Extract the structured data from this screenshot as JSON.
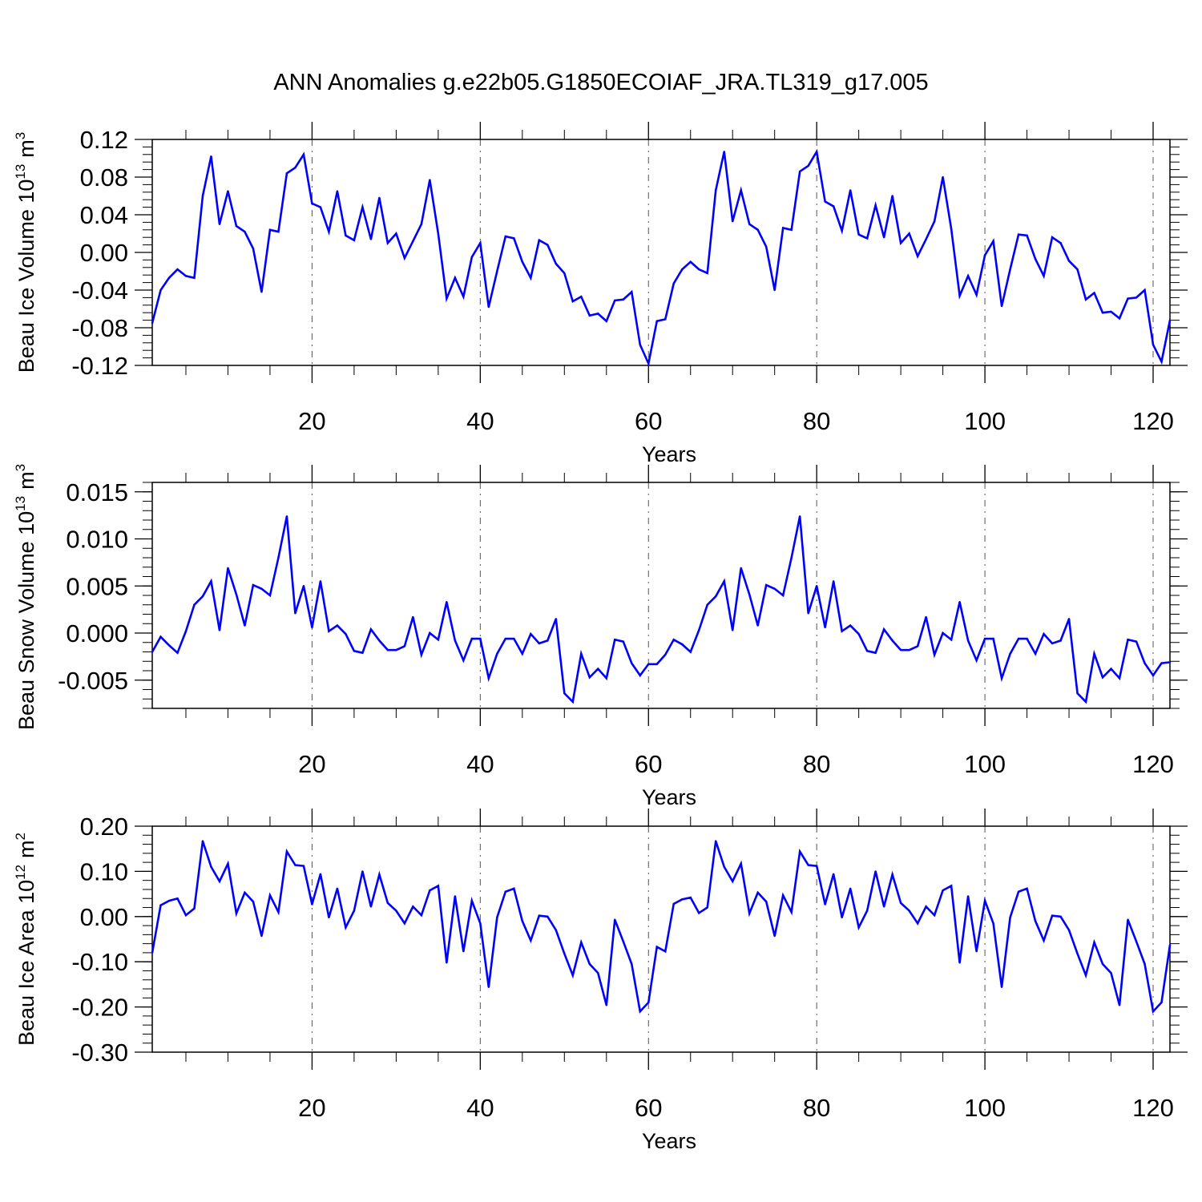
{
  "figure_title": "ANN Anomalies g.e22b05.G1850ECOIAF_JRA.TL319_g17.005",
  "series_color": "#0000ff",
  "chart_data": [
    {
      "type": "line",
      "title": "",
      "xlabel": "Years",
      "ylabel": "Beau Ice Volume 10",
      "ylabel_exponent": "13",
      "ylabel_unit": "m",
      "ylabel_unit_exponent": "3",
      "xlim": [
        1,
        122
      ],
      "ylim": [
        -0.12,
        0.12
      ],
      "xticks": [
        20,
        40,
        60,
        80,
        100,
        120
      ],
      "xtick_labels": [
        "20",
        "40",
        "60",
        "80",
        "100",
        "120"
      ],
      "yticks": [
        -0.12,
        -0.08,
        -0.04,
        0.0,
        0.04,
        0.08,
        0.12
      ],
      "ytick_labels": [
        "-0.12",
        "-0.08",
        "-0.04",
        "0.00",
        "0.04",
        "0.08",
        "0.12"
      ],
      "yminor_step": 0.008,
      "vgrid": [
        20,
        40,
        60,
        80,
        100,
        120
      ],
      "series": [
        {
          "name": "Beau Ice Volume",
          "values": [
            -0.075,
            -0.04,
            -0.027,
            -0.018,
            -0.025,
            -0.027,
            0.06,
            0.102,
            0.03,
            0.065,
            0.028,
            0.022,
            0.004,
            -0.042,
            0.024,
            0.022,
            0.084,
            0.09,
            0.104,
            0.052,
            0.048,
            0.022,
            0.065,
            0.018,
            0.013,
            0.048,
            0.014,
            0.058,
            0.01,
            0.02,
            -0.006,
            0.012,
            0.03,
            0.077,
            0.02,
            -0.049,
            -0.027,
            -0.047,
            -0.005,
            0.01,
            -0.058,
            -0.02,
            0.017,
            0.015,
            -0.01,
            -0.027,
            0.013,
            0.008,
            -0.012,
            -0.022,
            -0.052,
            -0.047,
            -0.067,
            -0.065,
            -0.073,
            -0.051,
            -0.05,
            -0.042,
            -0.098,
            -0.118,
            -0.073,
            -0.071,
            -0.033,
            -0.018,
            -0.01,
            -0.018,
            -0.022,
            0.066,
            0.107,
            0.033,
            0.066,
            0.03,
            0.024,
            0.006,
            -0.04,
            0.026,
            0.024,
            0.086,
            0.092,
            0.107,
            0.054,
            0.049,
            0.023,
            0.066,
            0.019,
            0.015,
            0.05,
            0.016,
            0.06,
            0.01,
            0.02,
            -0.004,
            0.014,
            0.033,
            0.08,
            0.025,
            -0.046,
            -0.025,
            -0.045,
            -0.003,
            0.012,
            -0.057,
            -0.018,
            0.019,
            0.018,
            -0.007,
            -0.025,
            0.016,
            0.01,
            -0.009,
            -0.018,
            -0.05,
            -0.043,
            -0.064,
            -0.063,
            -0.07,
            -0.049,
            -0.048,
            -0.04,
            -0.098,
            -0.116,
            -0.072
          ]
        }
      ]
    },
    {
      "type": "line",
      "title": "",
      "xlabel": "Years",
      "ylabel": "Beau Snow Volume 10",
      "ylabel_exponent": "13",
      "ylabel_unit": "m",
      "ylabel_unit_exponent": "3",
      "xlim": [
        1,
        122
      ],
      "ylim": [
        -0.008,
        0.016
      ],
      "xticks": [
        20,
        40,
        60,
        80,
        100,
        120
      ],
      "xtick_labels": [
        "20",
        "40",
        "60",
        "80",
        "100",
        "120"
      ],
      "yticks": [
        -0.005,
        0.0,
        0.005,
        0.01,
        0.015
      ],
      "ytick_labels": [
        "-0.005",
        "0.000",
        "0.005",
        "0.010",
        "0.015"
      ],
      "yminor_step": 0.001,
      "vgrid": [
        20,
        40,
        60,
        80,
        100,
        120
      ],
      "series": [
        {
          "name": "Beau Snow Volume",
          "values": [
            -0.002,
            -0.0004,
            -0.0013,
            -0.0021,
            0.0002,
            0.003,
            0.0039,
            0.0055,
            0.0003,
            0.0069,
            0.0041,
            0.0008,
            0.0051,
            0.0047,
            0.004,
            0.008,
            0.0124,
            0.0021,
            0.005,
            0.0006,
            0.0055,
            0.0002,
            0.0008,
            -0.0001,
            -0.0019,
            -0.0021,
            0.0004,
            -0.0008,
            -0.0018,
            -0.0018,
            -0.0014,
            0.0017,
            -0.0023,
            0.0,
            -0.0007,
            0.0033,
            -0.0008,
            -0.0029,
            -0.0006,
            -0.0006,
            -0.0048,
            -0.0022,
            -0.0006,
            -0.0006,
            -0.0022,
            -0.0001,
            -0.0011,
            -0.0008,
            0.0015,
            -0.0064,
            -0.0073,
            -0.0022,
            -0.0047,
            -0.0038,
            -0.0048,
            -0.0007,
            -0.0009,
            -0.0032,
            -0.0045,
            -0.0033,
            -0.0033,
            -0.0023,
            -0.0007,
            -0.0012,
            -0.002,
            0.0003,
            0.003,
            0.0039,
            0.0055,
            0.0003,
            0.0069,
            0.0041,
            0.0008,
            0.0051,
            0.0047,
            0.004,
            0.008,
            0.0124,
            0.0021,
            0.005,
            0.0006,
            0.0055,
            0.0002,
            0.0008,
            -0.0001,
            -0.0019,
            -0.0021,
            0.0004,
            -0.0008,
            -0.0018,
            -0.0018,
            -0.0014,
            0.0017,
            -0.0023,
            0.0,
            -0.0007,
            0.0033,
            -0.0008,
            -0.0029,
            -0.0006,
            -0.0006,
            -0.0048,
            -0.0022,
            -0.0006,
            -0.0006,
            -0.0022,
            -0.0001,
            -0.0011,
            -0.0008,
            0.0015,
            -0.0064,
            -0.0073,
            -0.0022,
            -0.0047,
            -0.0038,
            -0.0048,
            -0.0007,
            -0.0009,
            -0.0032,
            -0.0045,
            -0.0032,
            -0.0031
          ]
        }
      ]
    },
    {
      "type": "line",
      "title": "",
      "xlabel": "Years",
      "ylabel": "Beau Ice Area 10",
      "ylabel_exponent": "12",
      "ylabel_unit": "m",
      "ylabel_unit_exponent": "2",
      "xlim": [
        1,
        122
      ],
      "ylim": [
        -0.3,
        0.2
      ],
      "xticks": [
        20,
        40,
        60,
        80,
        100,
        120
      ],
      "xtick_labels": [
        "20",
        "40",
        "60",
        "80",
        "100",
        "120"
      ],
      "yticks": [
        -0.3,
        -0.2,
        -0.1,
        0.0,
        0.1,
        0.2
      ],
      "ytick_labels": [
        "-0.30",
        "-0.20",
        "-0.10",
        "0.00",
        "0.10",
        "0.20"
      ],
      "yminor_step": 0.02,
      "vgrid": [
        20,
        40,
        60,
        80,
        100,
        120
      ],
      "series": [
        {
          "name": "Beau Ice Area",
          "values": [
            -0.08,
            0.025,
            0.035,
            0.04,
            0.003,
            0.018,
            0.167,
            0.11,
            0.078,
            0.117,
            0.007,
            0.053,
            0.033,
            -0.043,
            0.047,
            0.01,
            0.144,
            0.114,
            0.112,
            0.027,
            0.094,
            -0.002,
            0.062,
            -0.024,
            0.013,
            0.1,
            0.022,
            0.093,
            0.03,
            0.013,
            -0.015,
            0.022,
            0.003,
            0.058,
            0.068,
            -0.102,
            0.045,
            -0.077,
            0.035,
            -0.015,
            -0.156,
            -0.002,
            0.055,
            0.062,
            -0.01,
            -0.053,
            0.002,
            0.0,
            -0.03,
            -0.082,
            -0.13,
            -0.057,
            -0.105,
            -0.125,
            -0.196,
            -0.007,
            -0.055,
            -0.105,
            -0.21,
            -0.19,
            -0.067,
            -0.077,
            0.028,
            0.038,
            0.042,
            0.008,
            0.02,
            0.167,
            0.11,
            0.078,
            0.117,
            0.007,
            0.053,
            0.033,
            -0.043,
            0.047,
            0.01,
            0.144,
            0.114,
            0.112,
            0.027,
            0.094,
            -0.002,
            0.062,
            -0.024,
            0.013,
            0.1,
            0.022,
            0.093,
            0.03,
            0.013,
            -0.015,
            0.022,
            0.003,
            0.058,
            0.068,
            -0.102,
            0.045,
            -0.077,
            0.035,
            -0.015,
            -0.156,
            -0.002,
            0.055,
            0.062,
            -0.01,
            -0.053,
            0.002,
            0.0,
            -0.03,
            -0.082,
            -0.13,
            -0.057,
            -0.105,
            -0.125,
            -0.196,
            -0.007,
            -0.055,
            -0.105,
            -0.21,
            -0.19,
            -0.063
          ]
        }
      ]
    }
  ]
}
